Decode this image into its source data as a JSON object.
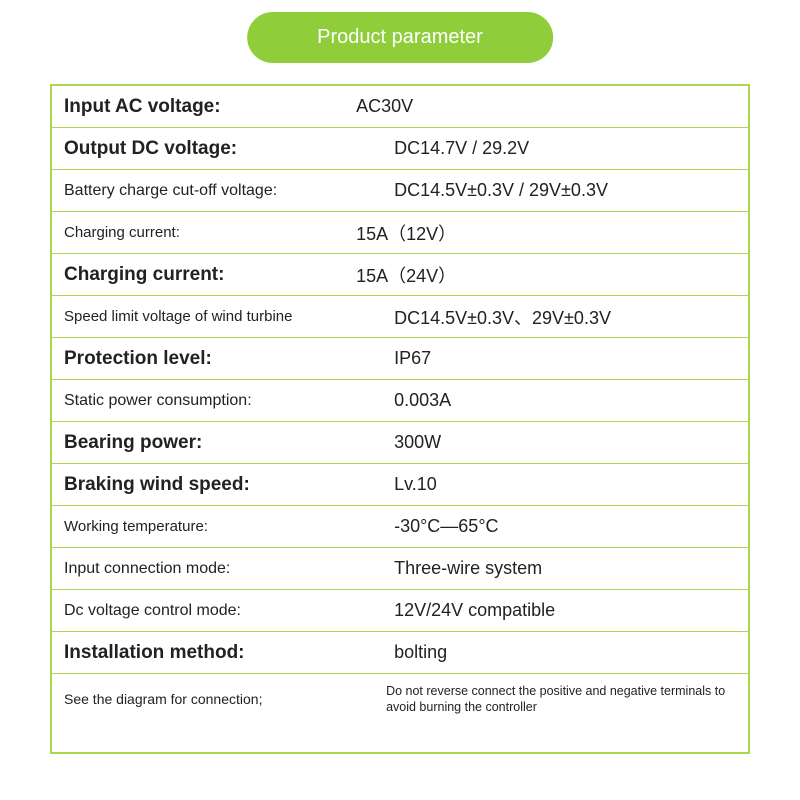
{
  "header": "Product parameter",
  "rows": [
    {
      "label": "Input AC voltage:",
      "labelClass": "label",
      "value": "AC30V",
      "valueClass": "value shift"
    },
    {
      "label": "Output DC voltage:",
      "labelClass": "label",
      "value": "DC14.7V / 29.2V",
      "valueClass": "value"
    },
    {
      "label": "Battery charge cut-off voltage:",
      "labelClass": "label med",
      "value": "DC14.5V±0.3V / 29V±0.3V",
      "valueClass": "value"
    },
    {
      "label": "Charging current:",
      "labelClass": "label small",
      "value": "15A（12V）",
      "valueClass": "value shift"
    },
    {
      "label": "Charging current:",
      "labelClass": "label",
      "value": "15A（24V）",
      "valueClass": "value shift"
    },
    {
      "label": "Speed limit voltage of wind turbine",
      "labelClass": "label small",
      "value": "DC14.5V±0.3V、29V±0.3V",
      "valueClass": "value"
    },
    {
      "label": "Protection level:",
      "labelClass": "label",
      "value": "IP67",
      "valueClass": "value"
    },
    {
      "label": "Static power consumption:",
      "labelClass": "label med",
      "value": "0.003A",
      "valueClass": "value"
    },
    {
      "label": "Bearing power:",
      "labelClass": "label",
      "value": "300W",
      "valueClass": "value"
    },
    {
      "label": "Braking wind speed:",
      "labelClass": "label",
      "value": "Lv.10",
      "valueClass": "value"
    },
    {
      "label": "Working  temperature:",
      "labelClass": "label small",
      "value": "-30°C—65°C",
      "valueClass": "value"
    },
    {
      "label": "Input connection mode:",
      "labelClass": "label med",
      "value": "Three-wire system",
      "valueClass": "value"
    },
    {
      "label": "Dc voltage control mode:",
      "labelClass": "label med",
      "value": "12V/24V compatible",
      "valueClass": "value"
    },
    {
      "label": "Installation method:",
      "labelClass": "label",
      "value": "bolting",
      "valueClass": "value"
    }
  ],
  "footer": {
    "left": "See the diagram for connection;",
    "right": "Do not reverse connect the positive and negative terminals to avoid burning the controller"
  },
  "colors": {
    "accent": "#8fce3a",
    "border": "#a8d84f",
    "text": "#222222",
    "bg": "#ffffff"
  }
}
